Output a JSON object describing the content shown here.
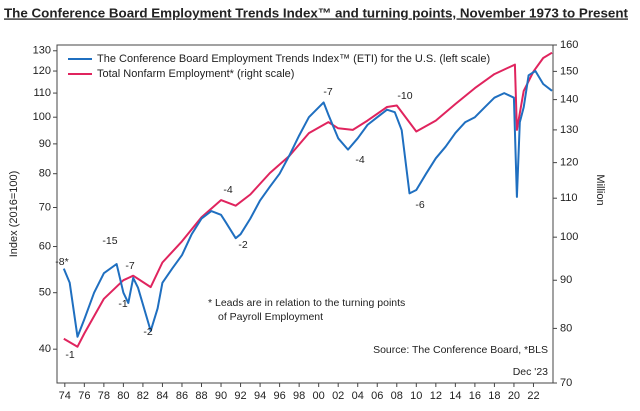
{
  "chart_data": {
    "type": "line",
    "title": "The Conference Board Employment Trends Index™ and turning points, November 1973 to Present",
    "ylabel": "Index (2016=100)",
    "y2label": "Million",
    "log_scale": true,
    "legend": "upper left",
    "xlim": [
      1973.2,
      2024
    ],
    "xticks": [
      {
        "value": 1974,
        "label": "74"
      },
      {
        "value": 1976,
        "label": "76"
      },
      {
        "value": 1978,
        "label": "78"
      },
      {
        "value": 1980,
        "label": "80"
      },
      {
        "value": 1982,
        "label": "82"
      },
      {
        "value": 1984,
        "label": "84"
      },
      {
        "value": 1986,
        "label": "86"
      },
      {
        "value": 1988,
        "label": "88"
      },
      {
        "value": 1990,
        "label": "90"
      },
      {
        "value": 1992,
        "label": "92"
      },
      {
        "value": 1994,
        "label": "94"
      },
      {
        "value": 1996,
        "label": "96"
      },
      {
        "value": 1998,
        "label": "98"
      },
      {
        "value": 2000,
        "label": "00"
      },
      {
        "value": 2002,
        "label": "02"
      },
      {
        "value": 2004,
        "label": "04"
      },
      {
        "value": 2006,
        "label": "06"
      },
      {
        "value": 2008,
        "label": "08"
      },
      {
        "value": 2010,
        "label": "10"
      },
      {
        "value": 2012,
        "label": "12"
      },
      {
        "value": 2014,
        "label": "14"
      },
      {
        "value": 2016,
        "label": "16"
      },
      {
        "value": 2018,
        "label": "18"
      },
      {
        "value": 2020,
        "label": "20"
      },
      {
        "value": 2022,
        "label": "22"
      }
    ],
    "ylim": [
      35,
      133
    ],
    "yticks": [
      40,
      50,
      60,
      70,
      80,
      90,
      100,
      110,
      120,
      130
    ],
    "y2lim": [
      70,
      160
    ],
    "y2ticks": [
      70,
      80,
      90,
      100,
      110,
      120,
      130,
      140,
      150,
      160
    ],
    "series": [
      {
        "name": "The Conference Board Employment Trends Index™ (ETI) for the U.S. (left scale)",
        "color": "#1f6fc0",
        "axis": "y",
        "x": [
          1973.9,
          1974.5,
          1975.3,
          1976,
          1977,
          1978,
          1979.3,
          1980,
          1980.5,
          1981,
          1981.5,
          1982.8,
          1983.5,
          1984,
          1985,
          1986,
          1987,
          1988,
          1989,
          1990,
          1990.5,
          1991.5,
          1992,
          1993,
          1994,
          1995,
          1996,
          1997,
          1998,
          1999,
          2000.5,
          2001,
          2002,
          2003,
          2004,
          2005,
          2006,
          2007,
          2007.8,
          2008.5,
          2009.3,
          2010,
          2011,
          2012,
          2013,
          2014,
          2015,
          2016,
          2017,
          2018,
          2019,
          2020,
          2020.3,
          2020.6,
          2021,
          2021.5,
          2022.2,
          2023,
          2023.9
        ],
        "values": [
          55,
          52,
          42,
          45,
          50,
          54,
          56,
          50,
          48,
          53,
          51,
          43,
          47,
          52,
          55,
          58,
          63,
          67,
          69,
          68,
          66,
          62,
          63,
          67,
          72,
          76,
          80,
          86,
          93,
          100,
          106,
          101,
          92,
          88,
          92,
          97,
          100,
          103,
          102,
          95,
          74,
          75,
          80,
          85,
          89,
          94,
          98,
          100,
          104,
          108,
          110,
          108,
          73,
          98,
          104,
          118,
          120,
          114,
          111
        ]
      },
      {
        "name": "Total Nonfarm Employment* (right scale)",
        "color": "#e0245e",
        "axis": "y2",
        "x": [
          1973.9,
          1975.3,
          1976,
          1978,
          1980,
          1981,
          1982.8,
          1984,
          1986,
          1988,
          1990,
          1991.5,
          1993,
          1995,
          1997,
          1999,
          2001,
          2002,
          2003.5,
          2005,
          2007,
          2008,
          2010,
          2012,
          2014,
          2016,
          2018,
          2020.1,
          2020.3,
          2021,
          2022,
          2023,
          2023.9
        ],
        "values": [
          78,
          76.5,
          79,
          86,
          90,
          91,
          88.5,
          94,
          99,
          105,
          109.5,
          108,
          111,
          117,
          122,
          129,
          132.5,
          130.5,
          130,
          133,
          137.5,
          138,
          129.5,
          133,
          138.5,
          144,
          149,
          152.5,
          130,
          143,
          150,
          155,
          157
        ]
      }
    ],
    "annotations": [
      "-8*",
      "-1",
      "-15",
      "-7",
      "-1",
      "-2",
      "-4",
      "-2",
      "-7",
      "-4",
      "-10",
      "-6"
    ],
    "note": [
      "* Leads are in relation to the turning points",
      "of Payroll Employment"
    ],
    "source": "Source: The Conference Board, *BLS",
    "date_label": "Dec '23"
  }
}
